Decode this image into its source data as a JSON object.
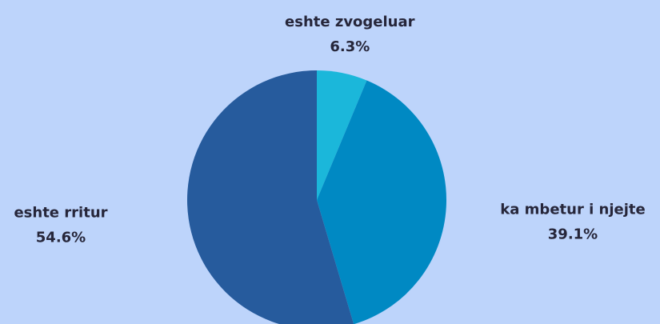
{
  "chart_data": {
    "type": "pie",
    "categories": [
      "eshte zvogeluar",
      "ka mbetur i njejte",
      "eshte rritur"
    ],
    "values": [
      6.3,
      39.1,
      54.6
    ],
    "value_labels": [
      "6.3%",
      "39.1%",
      "54.6%"
    ],
    "colors": [
      "#1bb7da",
      "#0089c3",
      "#265b9d"
    ]
  }
}
